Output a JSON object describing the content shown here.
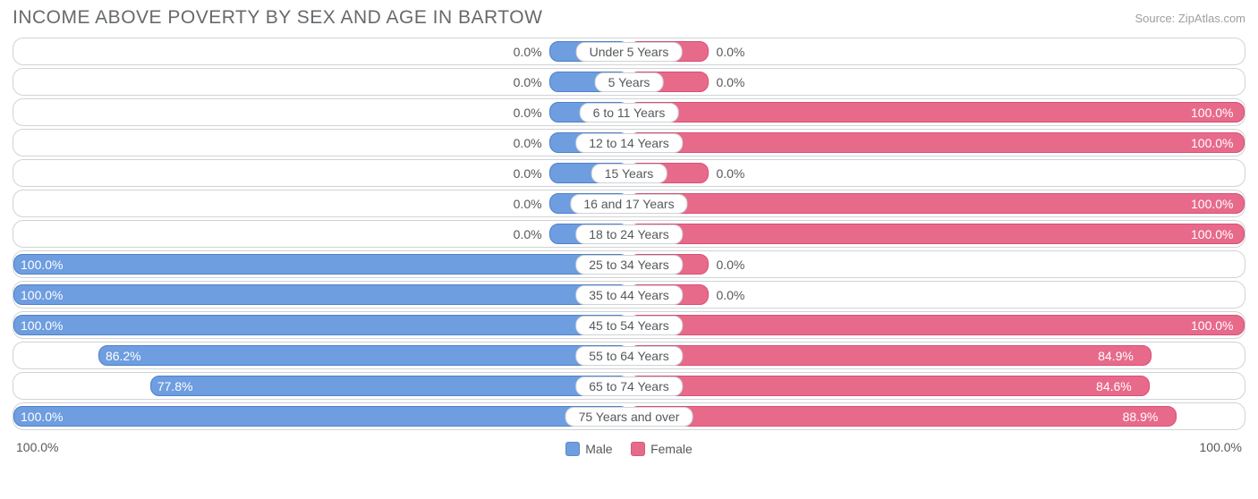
{
  "header": {
    "title": "INCOME ABOVE POVERTY BY SEX AND AGE IN BARTOW",
    "source": "Source: ZipAtlas.com"
  },
  "chart": {
    "type": "diverging-bar",
    "male_color": "#6e9de0",
    "male_border": "#4f82c9",
    "female_color": "#e86a8b",
    "female_border": "#d94f76",
    "row_border": "#d0d3d6",
    "background": "#ffffff",
    "label_fontsize": 14,
    "title_fontsize": 21,
    "min_bar_pct": 13,
    "categories": [
      {
        "label": "Under 5 Years",
        "male": 0.0,
        "female": 0.0
      },
      {
        "label": "5 Years",
        "male": 0.0,
        "female": 0.0
      },
      {
        "label": "6 to 11 Years",
        "male": 0.0,
        "female": 100.0
      },
      {
        "label": "12 to 14 Years",
        "male": 0.0,
        "female": 100.0
      },
      {
        "label": "15 Years",
        "male": 0.0,
        "female": 0.0
      },
      {
        "label": "16 and 17 Years",
        "male": 0.0,
        "female": 100.0
      },
      {
        "label": "18 to 24 Years",
        "male": 0.0,
        "female": 100.0
      },
      {
        "label": "25 to 34 Years",
        "male": 100.0,
        "female": 0.0
      },
      {
        "label": "35 to 44 Years",
        "male": 100.0,
        "female": 0.0
      },
      {
        "label": "45 to 54 Years",
        "male": 100.0,
        "female": 100.0
      },
      {
        "label": "55 to 64 Years",
        "male": 86.2,
        "female": 84.9
      },
      {
        "label": "65 to 74 Years",
        "male": 77.8,
        "female": 84.6
      },
      {
        "label": "75 Years and over",
        "male": 100.0,
        "female": 88.9
      }
    ]
  },
  "legend": {
    "male": "Male",
    "female": "Female"
  },
  "axis": {
    "left": "100.0%",
    "right": "100.0%"
  }
}
